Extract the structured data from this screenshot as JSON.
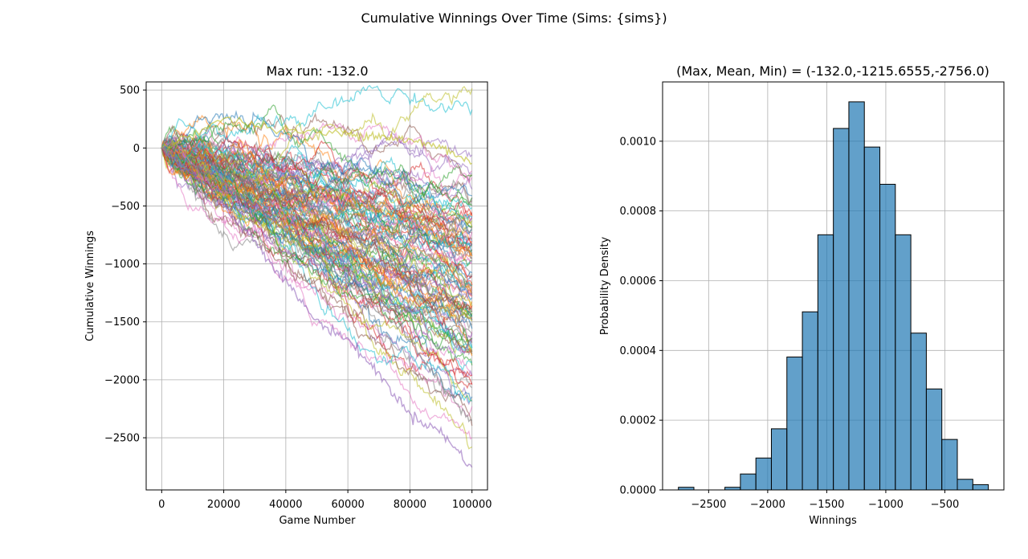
{
  "figure": {
    "suptitle": "Cumulative Winnings Over Time (Sims: {sims})"
  },
  "chart_data": [
    {
      "type": "line",
      "title": "Max run: -132.0",
      "xlabel": "Game Number",
      "ylabel": "Cumulative Winnings",
      "xlim": [
        -5000,
        105000
      ],
      "ylim": [
        -2950,
        570
      ],
      "xticks": [
        0,
        20000,
        40000,
        60000,
        80000,
        100000
      ],
      "yticks": [
        500,
        0,
        -500,
        -1000,
        -1500,
        -2000,
        -2500
      ],
      "grid": true,
      "series_count_note": "many simulation runs, colors cycle through default palette",
      "highlighted_runs": [
        {
          "color": "#bcbd22",
          "x": [
            0,
            20000,
            40000,
            60000,
            70000,
            80000,
            90000,
            100000
          ],
          "y": [
            0,
            250,
            150,
            120,
            110,
            60,
            10,
            -132
          ]
        },
        {
          "color": "#9467bd",
          "x": [
            0,
            10000,
            20000,
            30000,
            40000,
            50000,
            60000,
            70000,
            80000,
            90000,
            100000
          ],
          "y": [
            0,
            -220,
            -500,
            -800,
            -1150,
            -1500,
            -1650,
            -1950,
            -2300,
            -2450,
            -2756
          ]
        },
        {
          "color": "#7f7f7f",
          "x": [
            0,
            20000,
            40000,
            60000,
            80000,
            90000,
            100000
          ],
          "y": [
            0,
            -300,
            -700,
            -1150,
            -1650,
            -2050,
            -2350
          ]
        }
      ],
      "final_range": [
        -2756,
        -132
      ]
    },
    {
      "type": "bar",
      "title": "(Max, Mean, Min) = (-132.0,-1215.6555,-2756.0)",
      "xlabel": "Winnings",
      "ylabel": "Probability Density",
      "xlim": [
        -2890,
        0
      ],
      "ylim": [
        0,
        0.00117
      ],
      "xticks": [
        -2500,
        -2000,
        -1500,
        -1000,
        -500
      ],
      "yticks": [
        0.0,
        0.0002,
        0.0004,
        0.0006,
        0.0008,
        0.001
      ],
      "ytick_labels": [
        "0.0000",
        "0.0002",
        "0.0004",
        "0.0006",
        "0.0008",
        "0.0010"
      ],
      "grid": true,
      "bar_color": "#1f77b4",
      "bin_edges": [
        -2756,
        -2624.8,
        -2493.6,
        -2362.4,
        -2231.2,
        -2100,
        -1968.8,
        -1837.6,
        -1706.4,
        -1575.2,
        -1444,
        -1312.8,
        -1181.6,
        -1050.4,
        -919.2,
        -788,
        -656.8,
        -525.6,
        -394.4,
        -263.2,
        -132
      ],
      "values": [
        7.6e-06,
        0.0,
        0.0,
        7.6e-06,
        4.57e-05,
        9.15e-05,
        0.0001753,
        0.0003811,
        0.0005107,
        0.0007317,
        0.0010366,
        0.0011128,
        0.0009832,
        0.0008765,
        0.0007317,
        0.0004497,
        0.0002896,
        0.0001448,
        3.05e-05,
        1.52e-05
      ]
    }
  ]
}
